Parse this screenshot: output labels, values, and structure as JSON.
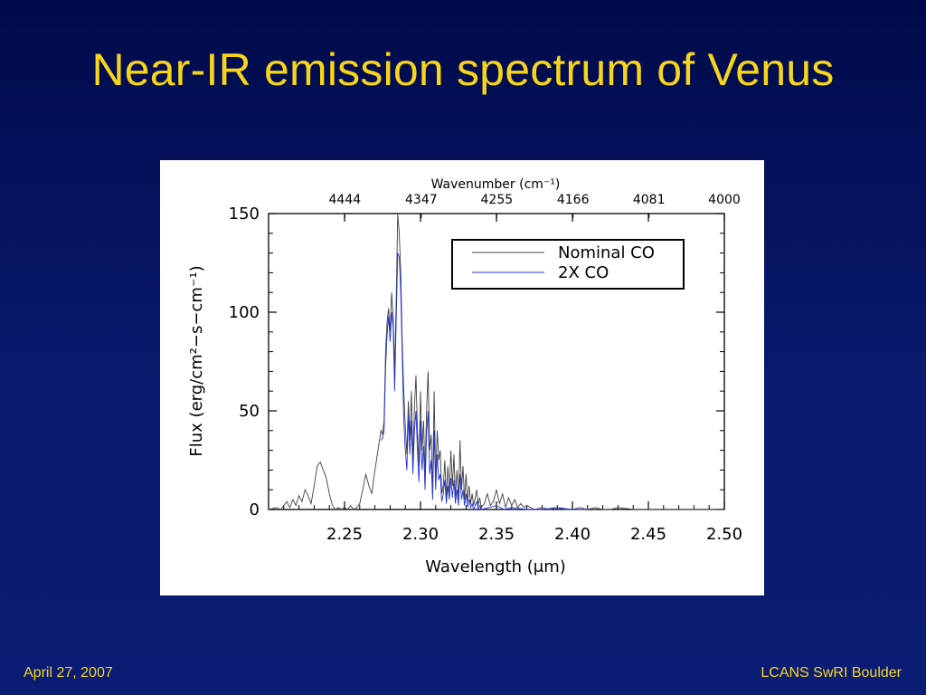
{
  "slide": {
    "title": "Near-IR emission spectrum of Venus",
    "footer_left": "April 27, 2007",
    "footer_right": "LCANS SwRI Boulder",
    "colors": {
      "background": "#0a1a6e",
      "title": "#f7d51a",
      "footer": "#f7d51a"
    }
  },
  "chart_data": {
    "type": "line",
    "title": "",
    "xlabel": "Wavelength (μm)",
    "ylabel": "Flux (erg/cm²−s−cm⁻¹)",
    "top_axis_label": "Wavenumber (cm⁻¹)",
    "xlim": [
      2.2,
      2.5
    ],
    "ylim": [
      0,
      150
    ],
    "x_ticks": [
      2.25,
      2.3,
      2.35,
      2.4,
      2.45,
      2.5
    ],
    "x_tick_labels": [
      "2.25",
      "2.30",
      "2.35",
      "2.40",
      "2.45",
      "2.50"
    ],
    "y_ticks": [
      0,
      50,
      100,
      150
    ],
    "y_tick_labels": [
      "0",
      "50",
      "100",
      "150"
    ],
    "top_ticks": [
      2.2502,
      2.3005,
      2.3502,
      2.4004,
      2.4504,
      2.5
    ],
    "top_tick_labels": [
      "4444",
      "4347",
      "4255",
      "4166",
      "4081",
      "4000"
    ],
    "legend_position": "top-right",
    "grid": false,
    "series": [
      {
        "name": "Nominal CO",
        "color": "#404040",
        "x": [
          2.2,
          2.205,
          2.208,
          2.21,
          2.212,
          2.214,
          2.216,
          2.218,
          2.22,
          2.222,
          2.224,
          2.226,
          2.228,
          2.23,
          2.232,
          2.234,
          2.236,
          2.238,
          2.24,
          2.242,
          2.244,
          2.246,
          2.248,
          2.25,
          2.252,
          2.254,
          2.256,
          2.258,
          2.26,
          2.262,
          2.264,
          2.266,
          2.268,
          2.27,
          2.272,
          2.274,
          2.275,
          2.276,
          2.277,
          2.278,
          2.279,
          2.28,
          2.281,
          2.282,
          2.283,
          2.284,
          2.285,
          2.286,
          2.287,
          2.288,
          2.289,
          2.29,
          2.291,
          2.292,
          2.293,
          2.294,
          2.295,
          2.296,
          2.297,
          2.298,
          2.299,
          2.3,
          2.301,
          2.302,
          2.303,
          2.304,
          2.305,
          2.306,
          2.307,
          2.308,
          2.309,
          2.31,
          2.311,
          2.312,
          2.313,
          2.314,
          2.315,
          2.316,
          2.317,
          2.318,
          2.319,
          2.32,
          2.321,
          2.322,
          2.323,
          2.324,
          2.325,
          2.326,
          2.327,
          2.328,
          2.329,
          2.33,
          2.331,
          2.332,
          2.333,
          2.334,
          2.335,
          2.336,
          2.337,
          2.338,
          2.339,
          2.34,
          2.342,
          2.344,
          2.346,
          2.348,
          2.35,
          2.352,
          2.354,
          2.356,
          2.358,
          2.36,
          2.362,
          2.364,
          2.366,
          2.368,
          2.37,
          2.375,
          2.38,
          2.385,
          2.39,
          2.395,
          2.4,
          2.405,
          2.41,
          2.415,
          2.42,
          2.425,
          2.43,
          2.44,
          2.45,
          2.46,
          2.47,
          2.48,
          2.49,
          2.5
        ],
        "y": [
          0,
          1,
          0,
          2,
          4,
          1,
          5,
          2,
          7,
          4,
          10,
          7,
          3,
          12,
          22,
          24,
          20,
          16,
          8,
          2,
          0,
          1,
          0,
          1,
          0,
          2,
          0,
          1,
          3,
          10,
          18,
          12,
          8,
          20,
          30,
          40,
          38,
          45,
          80,
          95,
          102,
          90,
          110,
          98,
          70,
          105,
          150,
          140,
          120,
          85,
          60,
          42,
          28,
          55,
          35,
          60,
          25,
          52,
          68,
          40,
          22,
          60,
          30,
          45,
          18,
          50,
          70,
          30,
          38,
          8,
          60,
          15,
          40,
          25,
          30,
          8,
          12,
          25,
          5,
          22,
          8,
          30,
          12,
          28,
          6,
          20,
          5,
          35,
          10,
          22,
          5,
          18,
          4,
          12,
          3,
          8,
          2,
          6,
          10,
          2,
          6,
          1,
          3,
          8,
          2,
          4,
          10,
          3,
          8,
          1,
          6,
          2,
          5,
          1,
          3,
          1,
          2,
          0,
          1,
          0,
          1,
          0,
          0,
          1,
          0,
          1,
          0,
          0,
          1,
          0,
          0,
          0,
          0,
          0,
          0,
          0
        ]
      },
      {
        "name": "2X CO",
        "color": "#2233dd",
        "x": [
          2.274,
          2.275,
          2.276,
          2.277,
          2.278,
          2.279,
          2.28,
          2.281,
          2.282,
          2.283,
          2.284,
          2.285,
          2.286,
          2.287,
          2.288,
          2.289,
          2.29,
          2.291,
          2.292,
          2.293,
          2.294,
          2.295,
          2.296,
          2.297,
          2.298,
          2.299,
          2.3,
          2.301,
          2.302,
          2.303,
          2.304,
          2.305,
          2.306,
          2.307,
          2.308,
          2.309,
          2.31,
          2.311,
          2.312,
          2.313,
          2.314,
          2.315,
          2.316,
          2.317,
          2.318,
          2.319,
          2.32,
          2.321,
          2.322,
          2.323,
          2.324,
          2.325,
          2.326,
          2.327,
          2.328,
          2.329,
          2.33,
          2.331,
          2.332,
          2.333,
          2.334,
          2.335,
          2.336,
          2.337,
          2.338,
          2.339,
          2.34,
          2.345,
          2.35,
          2.355,
          2.36,
          2.37,
          2.38,
          2.39,
          2.4,
          2.41
        ],
        "y": [
          35,
          36,
          40,
          72,
          88,
          98,
          85,
          100,
          92,
          60,
          95,
          130,
          128,
          110,
          78,
          45,
          30,
          20,
          48,
          28,
          45,
          18,
          40,
          50,
          30,
          14,
          45,
          20,
          32,
          10,
          38,
          50,
          18,
          25,
          5,
          40,
          10,
          28,
          15,
          18,
          4,
          8,
          15,
          3,
          12,
          5,
          16,
          6,
          15,
          3,
          10,
          2,
          18,
          5,
          10,
          2,
          8,
          1,
          5,
          1,
          3,
          0,
          2,
          4,
          0,
          2,
          0,
          1,
          2,
          0,
          1,
          0,
          0,
          1,
          0,
          0
        ]
      }
    ]
  }
}
